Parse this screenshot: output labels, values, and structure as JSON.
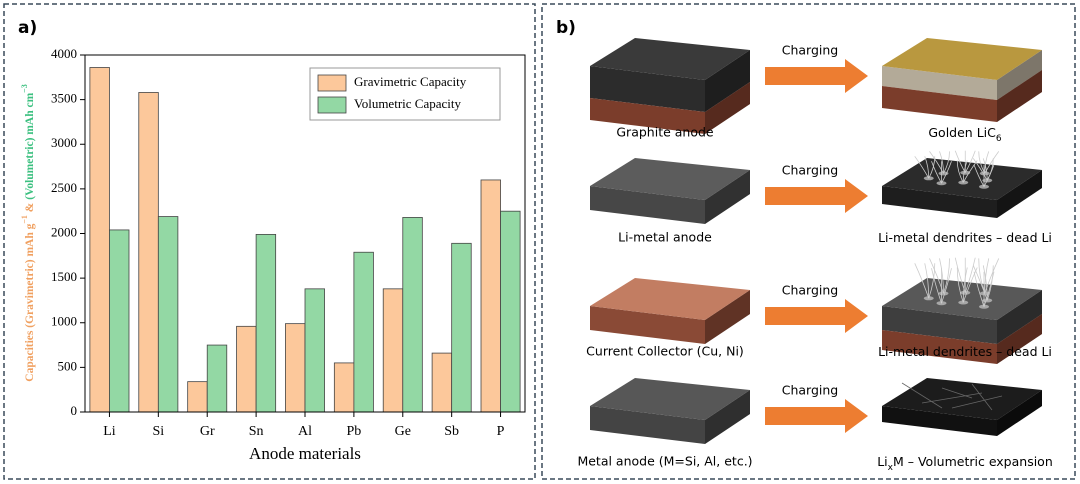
{
  "chart_data": {
    "type": "bar",
    "panel_label": "a)",
    "categories": [
      "Li",
      "Si",
      "Gr",
      "Sn",
      "Al",
      "Pb",
      "Ge",
      "Sb",
      "P"
    ],
    "series": [
      {
        "name": "Gravimetric Capacity",
        "color": "#fcc89b",
        "values": [
          3860,
          3580,
          340,
          960,
          990,
          550,
          1380,
          660,
          2600
        ]
      },
      {
        "name": "Volumetric Capacity",
        "color": "#93d8a4",
        "values": [
          2040,
          2190,
          750,
          1990,
          1380,
          1790,
          2180,
          1890,
          2250
        ]
      }
    ],
    "xlabel": "Anode materials",
    "ylabel": {
      "gravimetric": "Capacities (Gravimetric) mAh g",
      "gravimetric_sup": "−1",
      "joiner": " & ",
      "volumetric": "(Volumetric) mAh cm",
      "volumetric_sup": "−3"
    },
    "ylim": [
      0,
      4000
    ],
    "yticks": [
      0,
      500,
      1000,
      1500,
      2000,
      2500,
      3000,
      3500,
      4000
    ],
    "legend": "upper right"
  },
  "panel_b": {
    "panel_label": "b)",
    "rows": [
      {
        "from_label": "Graphite anode",
        "arrow_label": "Charging",
        "to_label": [
          "Golden LiC",
          "6"
        ]
      },
      {
        "from_label": "Li-metal anode",
        "arrow_label": "Charging",
        "to_label": [
          "Li-metal dendrites – dead Li"
        ]
      },
      {
        "from_label": "Current Collector (Cu, Ni)",
        "arrow_label": "Charging",
        "to_label": [
          "Li-metal dendrites – dead Li"
        ]
      },
      {
        "from_label": "Metal anode (M=Si, Al, etc.)",
        "arrow_label": "Charging",
        "to_label": [
          "Li",
          "x",
          "M – Volumetric expansion"
        ]
      }
    ]
  }
}
